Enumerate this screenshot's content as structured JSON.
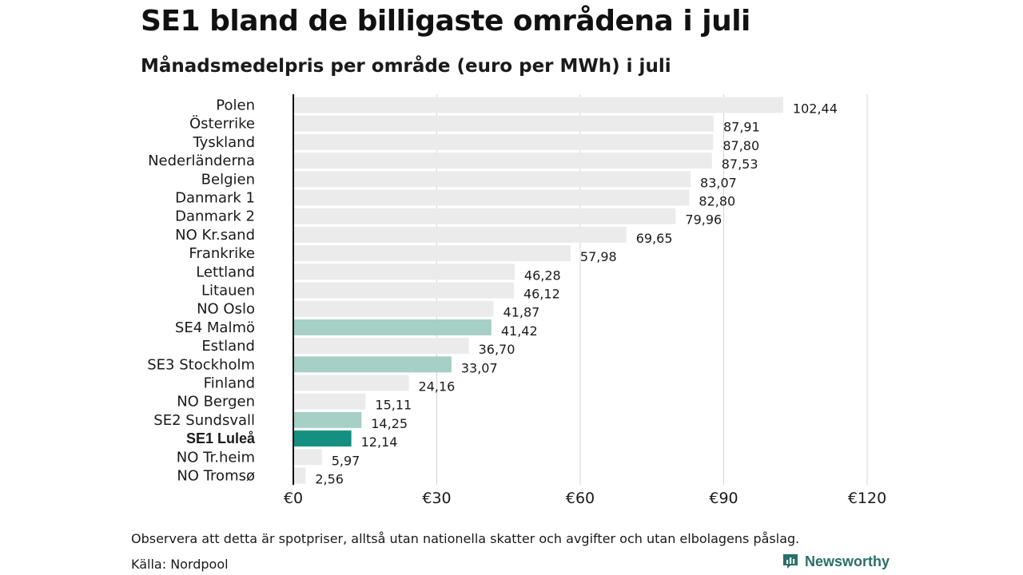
{
  "title": "SE1 bland de billigaste områdena i juli",
  "subtitle": "Månadsmedelpris per område (euro per MWh) i juli",
  "note": "Observera att detta är spotpriser, alltså utan nationella skatter och avgifter och utan elbolagens påslag.",
  "source": "Källa: Nordpool",
  "brand": {
    "name": "Newsworthy",
    "icon": "newsworthy-logo-icon",
    "color": "#2a6f6a"
  },
  "colors": {
    "default": "#ebebeb",
    "se": "#a6cfc6",
    "highlight": "#148f80",
    "axis": "#111111",
    "grid": "#d4d4d4"
  },
  "chart_data": {
    "type": "bar",
    "orientation": "horizontal",
    "categories": [
      "Polen",
      "Österrike",
      "Tyskland",
      "Nederländerna",
      "Belgien",
      "Danmark  1",
      "Danmark  2",
      "NO Kr.sand",
      "Frankrike",
      "Lettland",
      "Litauen",
      "NO Oslo",
      "SE4  Malmö",
      "Estland",
      "SE3  Stockholm",
      "Finland",
      "NO Bergen",
      "SE2  Sundsvall",
      "SE1 Luleå",
      "NO Tr.heim",
      "NO Tromsø"
    ],
    "values": [
      102.44,
      87.91,
      87.8,
      87.53,
      83.07,
      82.8,
      79.96,
      69.65,
      57.98,
      46.28,
      46.12,
      41.87,
      41.42,
      36.7,
      33.07,
      24.16,
      15.11,
      14.25,
      12.14,
      5.97,
      2.56
    ],
    "value_labels": [
      "102,44",
      "87,91",
      "87,80",
      "87,53",
      "83,07",
      "82,80",
      "79,96",
      "69,65",
      "57,98",
      "46,28",
      "46,12",
      "41,87",
      "41,42",
      "36,70",
      "33,07",
      "24,16",
      "15,11",
      "14,25",
      "12,14",
      "5,97",
      "2,56"
    ],
    "groups": [
      "default",
      "default",
      "default",
      "default",
      "default",
      "default",
      "default",
      "default",
      "default",
      "default",
      "default",
      "default",
      "se",
      "default",
      "se",
      "default",
      "default",
      "se",
      "highlight",
      "default",
      "default"
    ],
    "highlighted_category": "SE1 Luleå",
    "xlim": [
      0,
      120
    ],
    "xticks": [
      0,
      30,
      60,
      90,
      120
    ],
    "xtick_labels": [
      "€0",
      "€30",
      "€60",
      "€90",
      "€120"
    ],
    "grid": true
  }
}
